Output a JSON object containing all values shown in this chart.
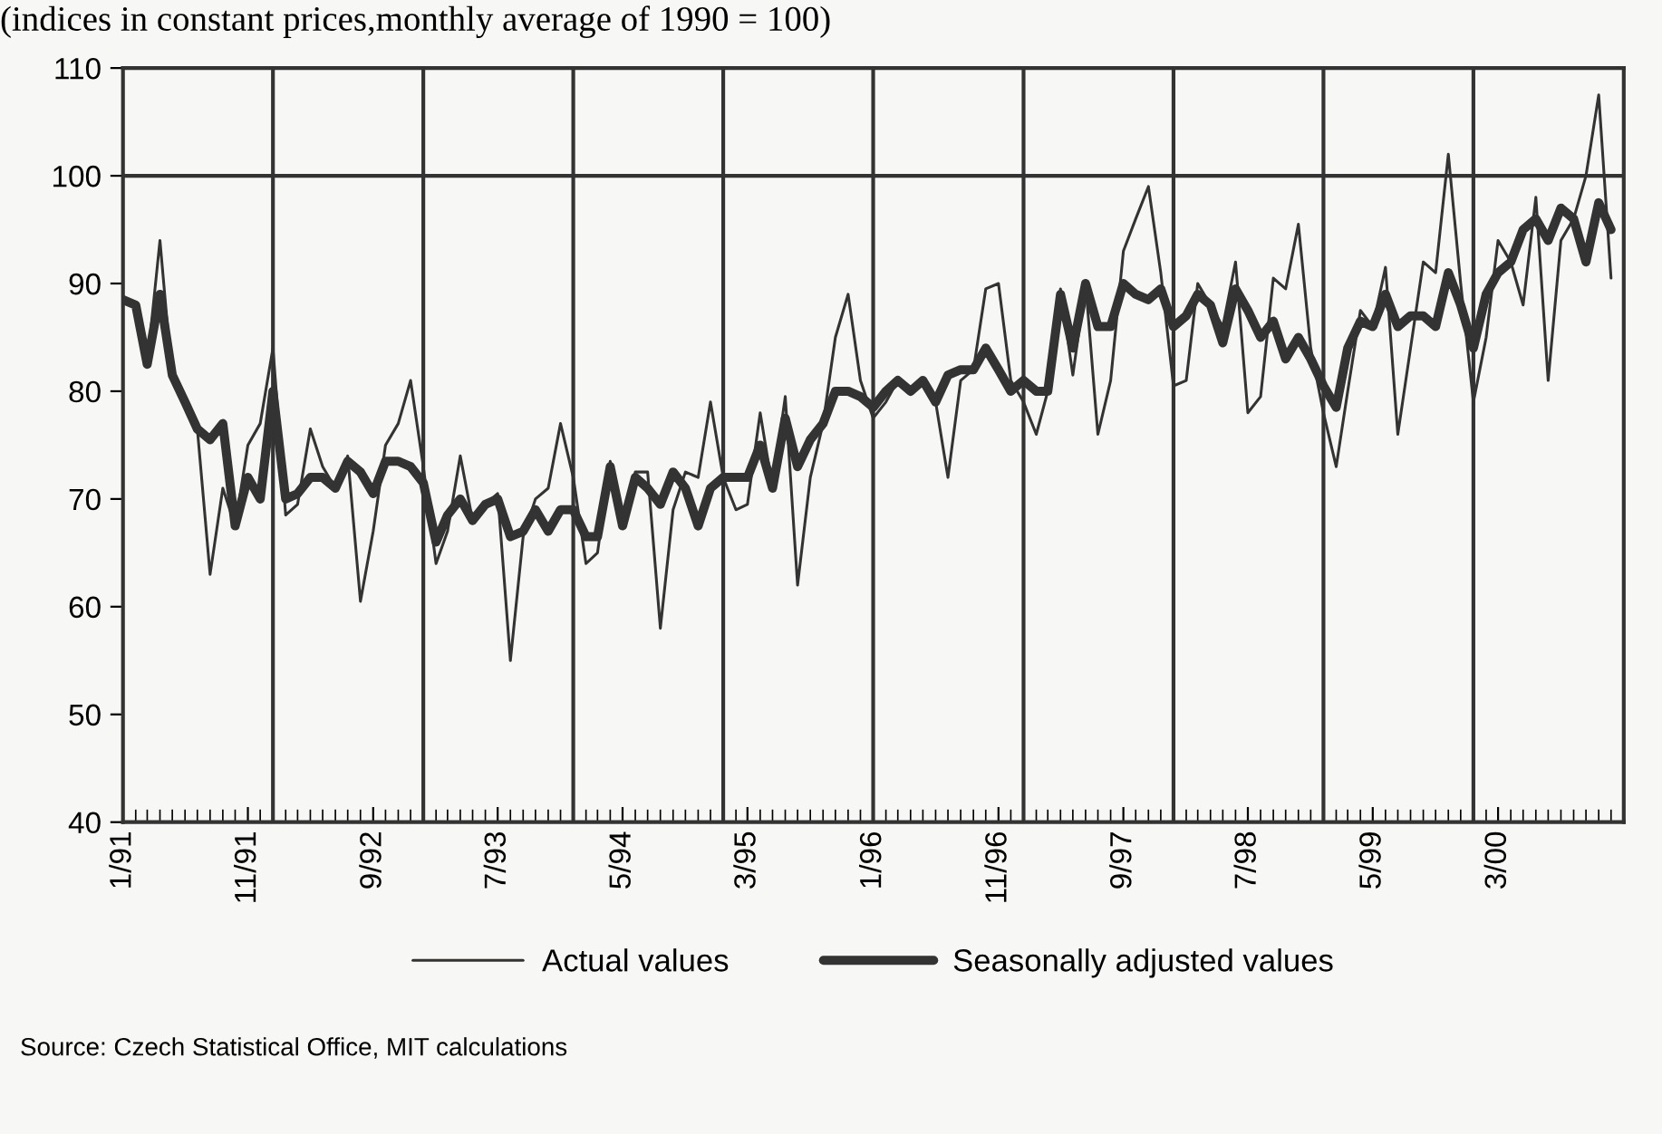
{
  "chart_data": {
    "type": "line",
    "subtitle": "(indices in constant prices,monthly average of 1990 = 100)",
    "x": [
      "1991-01",
      "1991-02",
      "1991-03",
      "1991-04",
      "1991-05",
      "1991-06",
      "1991-07",
      "1991-08",
      "1991-09",
      "1991-10",
      "1991-11",
      "1991-12",
      "1992-01",
      "1992-02",
      "1992-03",
      "1992-04",
      "1992-05",
      "1992-06",
      "1992-07",
      "1992-08",
      "1992-09",
      "1992-10",
      "1992-11",
      "1992-12",
      "1993-01",
      "1993-02",
      "1993-03",
      "1993-04",
      "1993-05",
      "1993-06",
      "1993-07",
      "1993-08",
      "1993-09",
      "1993-10",
      "1993-11",
      "1993-12",
      "1994-01",
      "1994-02",
      "1994-03",
      "1994-04",
      "1994-05",
      "1994-06",
      "1994-07",
      "1994-08",
      "1994-09",
      "1994-10",
      "1994-11",
      "1994-12",
      "1995-01",
      "1995-02",
      "1995-03",
      "1995-04",
      "1995-05",
      "1995-06",
      "1995-07",
      "1995-08",
      "1995-09",
      "1995-10",
      "1995-11",
      "1995-12",
      "1996-01",
      "1996-02",
      "1996-03",
      "1996-04",
      "1996-05",
      "1996-06",
      "1996-07",
      "1996-08",
      "1996-09",
      "1996-10",
      "1996-11",
      "1996-12",
      "1997-01",
      "1997-02",
      "1997-03",
      "1997-04",
      "1997-05",
      "1997-06",
      "1997-07",
      "1997-08",
      "1997-09",
      "1997-10",
      "1997-11",
      "1997-12",
      "1998-01",
      "1998-02",
      "1998-03",
      "1998-04",
      "1998-05",
      "1998-06",
      "1998-07",
      "1998-08",
      "1998-09",
      "1998-10",
      "1998-11",
      "1998-12",
      "1999-01",
      "1999-02",
      "1999-03",
      "1999-04",
      "1999-05",
      "1999-06",
      "1999-07",
      "1999-08",
      "1999-09",
      "1999-10",
      "1999-11",
      "1999-12",
      "2000-01",
      "2000-02",
      "2000-03",
      "2000-04",
      "2000-05",
      "2000-06",
      "2000-07",
      "2000-08",
      "2000-09",
      "2000-10",
      "2000-11",
      "2000-12"
    ],
    "xlim": [
      "1991-01",
      "2001-01"
    ],
    "xticks": [
      {
        "value": "1991-01",
        "label": "1/91"
      },
      {
        "value": "1991-11",
        "label": "11/91"
      },
      {
        "value": "1992-09",
        "label": "9/92"
      },
      {
        "value": "1993-07",
        "label": "7/93"
      },
      {
        "value": "1994-05",
        "label": "5/94"
      },
      {
        "value": "1995-03",
        "label": "3/95"
      },
      {
        "value": "1996-01",
        "label": "1/96"
      },
      {
        "value": "1996-11",
        "label": "11/96"
      },
      {
        "value": "1997-09",
        "label": "9/97"
      },
      {
        "value": "1998-07",
        "label": "7/98"
      },
      {
        "value": "1999-05",
        "label": "5/99"
      },
      {
        "value": "2000-03",
        "label": "3/00"
      }
    ],
    "ylim": [
      40,
      110
    ],
    "yticks": [
      40,
      50,
      60,
      70,
      80,
      90,
      100,
      110
    ],
    "grid": false,
    "legend": "bottom",
    "marker": "none",
    "series": [
      {
        "name": "Actual values",
        "color": "#333333",
        "values": [
          88.5,
          88,
          82.5,
          94,
          81,
          79,
          76.5,
          63,
          71,
          67.5,
          75,
          77,
          84,
          68.5,
          69.5,
          76.5,
          73,
          71,
          74,
          60.5,
          67,
          75,
          77,
          81,
          73,
          64,
          67,
          74,
          68,
          69.5,
          70.5,
          55,
          66.5,
          70,
          71,
          77,
          72,
          64,
          65,
          73.5,
          67.5,
          72.5,
          72.5,
          58,
          69,
          72.5,
          72,
          79,
          72,
          69,
          69.5,
          78,
          71,
          79.5,
          62,
          72,
          77,
          85,
          89,
          81,
          77.5,
          79,
          81,
          80,
          81,
          79,
          72,
          81,
          82,
          89.5,
          90,
          81,
          79,
          76,
          80,
          89.5,
          81.5,
          90,
          76,
          81,
          93,
          96,
          99,
          91,
          80.5,
          81,
          90,
          88,
          86,
          92,
          78,
          79.5,
          90.5,
          89.5,
          95.5,
          84,
          78,
          73,
          80,
          87.5,
          86,
          91.5,
          76,
          84,
          92,
          91,
          102,
          90,
          79,
          85,
          94,
          92,
          88,
          98,
          81,
          94,
          96,
          100,
          107.5,
          90.5
        ]
      },
      {
        "name": "Seasonally adjusted values",
        "color": "#333333",
        "values": [
          88.5,
          88,
          82.5,
          89,
          81.5,
          79,
          76.5,
          75.5,
          77,
          67.5,
          72,
          70,
          80,
          70,
          70.5,
          72,
          72,
          71,
          73.5,
          72.5,
          70.5,
          73.5,
          73.5,
          73,
          71.5,
          66,
          68.5,
          70,
          68,
          69.5,
          70,
          66.5,
          67,
          69,
          67,
          69,
          69,
          66.5,
          66.5,
          73,
          67.5,
          72,
          71,
          69.5,
          72.5,
          71,
          67.5,
          71,
          72,
          72,
          72,
          75,
          71,
          77.5,
          73,
          75.5,
          77,
          80,
          80,
          79.5,
          78.5,
          80,
          81,
          80,
          81,
          79,
          81.5,
          82,
          82,
          84,
          82,
          80,
          81,
          80,
          80,
          89,
          84,
          90,
          86,
          86,
          90,
          89,
          88.5,
          89.5,
          86,
          87,
          89,
          88,
          84.5,
          89.5,
          87.5,
          85,
          86.5,
          83,
          85,
          83,
          80.5,
          78.5,
          84,
          86.5,
          86,
          89,
          86,
          87,
          87,
          86,
          91,
          88,
          84,
          89,
          91,
          92,
          95,
          96,
          94,
          97,
          96,
          92,
          97.5,
          95
        ]
      }
    ],
    "ref_lines": [
      {
        "axis": "y",
        "value": 100
      },
      {
        "axis": "x",
        "value": "1992-01"
      },
      {
        "axis": "x",
        "value": "1993-01"
      },
      {
        "axis": "x",
        "value": "1994-01"
      },
      {
        "axis": "x",
        "value": "1995-01"
      },
      {
        "axis": "x",
        "value": "1996-01"
      },
      {
        "axis": "x",
        "value": "1997-01"
      },
      {
        "axis": "x",
        "value": "1998-01"
      },
      {
        "axis": "x",
        "value": "1999-01"
      },
      {
        "axis": "x",
        "value": "2000-01"
      }
    ],
    "annotations": [
      "Source: Czech Statistical Office, MIT calculations"
    ]
  }
}
